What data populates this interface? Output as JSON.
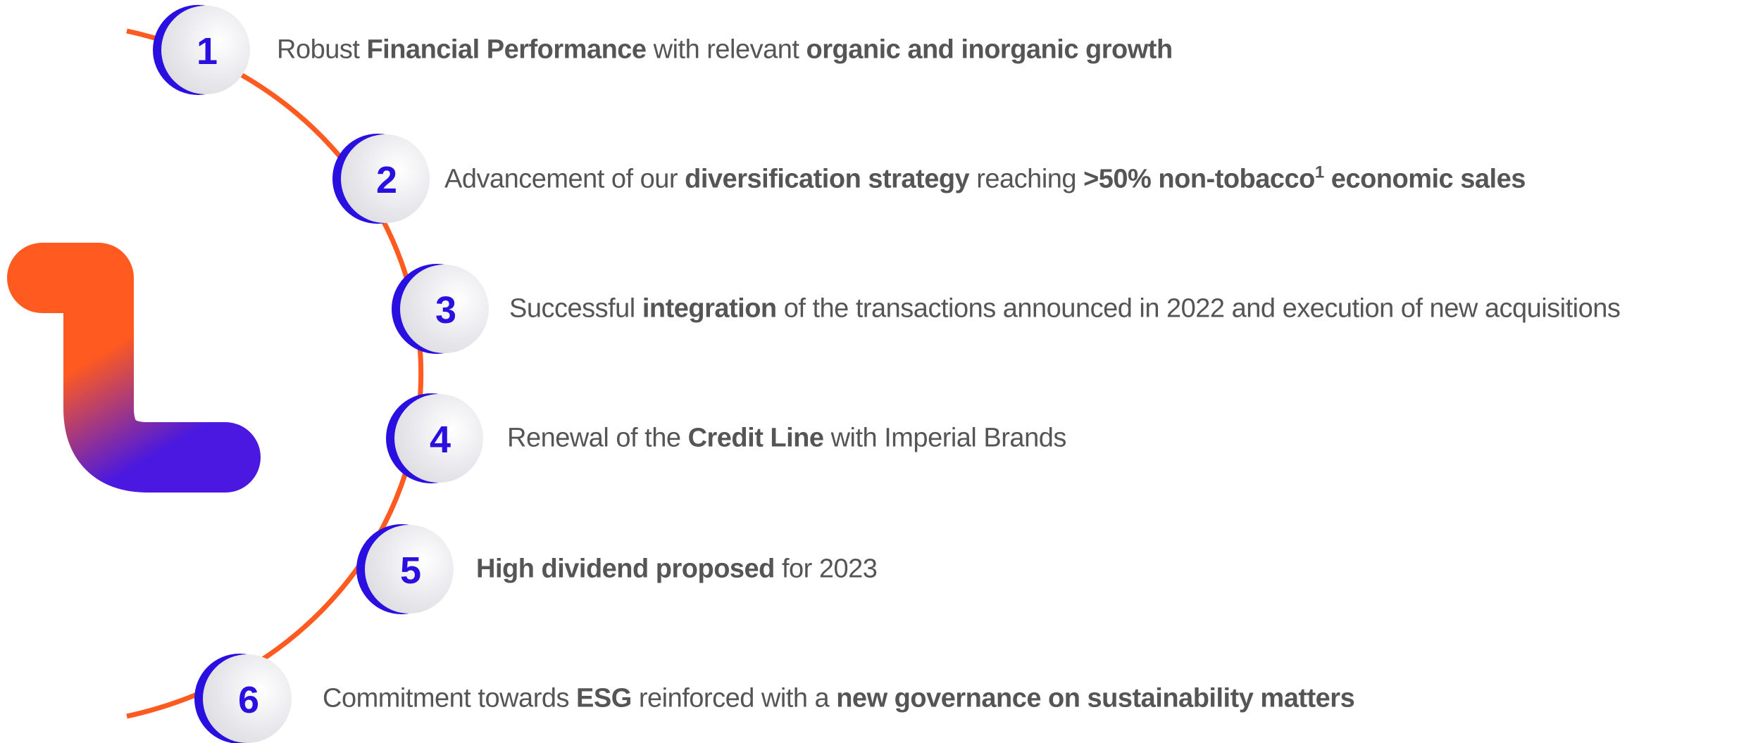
{
  "items": [
    {
      "number": "1",
      "segments": [
        {
          "text": "Robust "
        },
        {
          "text": "Financial Performance",
          "bold": true
        },
        {
          "text": " with relevant "
        },
        {
          "text": "organic and inorganic growth",
          "bold": true
        }
      ]
    },
    {
      "number": "2",
      "segments": [
        {
          "text": "Advancement of our "
        },
        {
          "text": "diversification strategy",
          "bold": true
        },
        {
          "text": " reaching "
        },
        {
          "text": ">50% non-tobacco",
          "bold": true
        },
        {
          "text": "1",
          "bold": true,
          "sup": true
        },
        {
          "text": " economic sales",
          "bold": true
        }
      ]
    },
    {
      "number": "3",
      "segments": [
        {
          "text": "Successful "
        },
        {
          "text": "integration",
          "bold": true
        },
        {
          "text": " of the transactions announced in 2022 and execution of new acquisitions"
        }
      ]
    },
    {
      "number": "4",
      "segments": [
        {
          "text": "Renewal of the "
        },
        {
          "text": "Credit Line",
          "bold": true
        },
        {
          "text": " with Imperial Brands"
        }
      ]
    },
    {
      "number": "5",
      "segments": [
        {
          "text": "High dividend proposed",
          "bold": true
        },
        {
          "text": " for 2023"
        }
      ]
    },
    {
      "number": "6",
      "segments": [
        {
          "text": "Commitment towards "
        },
        {
          "text": "ESG",
          "bold": true
        },
        {
          "text": " reinforced with a "
        },
        {
          "text": "new governance on sustainability matters",
          "bold": true
        }
      ]
    }
  ]
}
